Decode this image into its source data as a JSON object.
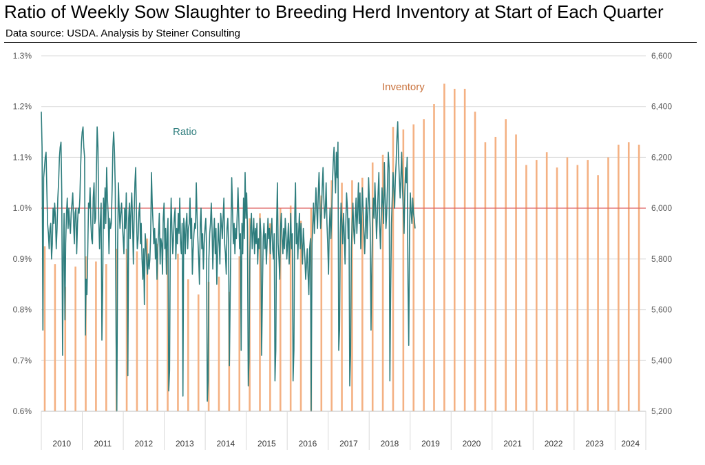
{
  "title": "Ratio of Weekly Sow Slaughter to Breeding Herd Inventory at Start of Each Quarter",
  "subtitle": "Data source: USDA.   Analysis by Steiner Consulting",
  "colors": {
    "ratio": "#2e7d7d",
    "inventory": "#f4b183",
    "reference": "#e06666",
    "inventory_label": "#c8703a",
    "grid": "#d9d9d9"
  },
  "chart_data": {
    "type": "line",
    "grid": true,
    "x_years": [
      "2010",
      "2011",
      "2012",
      "2013",
      "2014",
      "2015",
      "2016",
      "2017",
      "2018",
      "2019",
      "2020",
      "2021",
      "2022",
      "2023",
      "2024"
    ],
    "left_axis": {
      "ticks": [
        "1.3%",
        "1.2%",
        "1.1%",
        "1.0%",
        "0.9%",
        "0.8%",
        "0.7%",
        "0.6%"
      ],
      "ylim": [
        0.6,
        1.3
      ],
      "unit": "%"
    },
    "right_axis": {
      "ticks": [
        "6,600",
        "6,400",
        "6,200",
        "6,000",
        "5,800",
        "5,600",
        "5,400",
        "5,200"
      ],
      "ylim": [
        5200,
        6600
      ]
    },
    "reference_line": 1.0,
    "annotations": {
      "ratio": "Ratio",
      "inventory": "Inventory"
    },
    "series": [
      {
        "name": "Inventory",
        "type": "bar",
        "axis": "right",
        "x": [
          2010.0,
          2010.25,
          2010.5,
          2010.75,
          2011.0,
          2011.25,
          2011.5,
          2011.75,
          2012.0,
          2012.25,
          2012.5,
          2012.75,
          2013.0,
          2013.25,
          2013.5,
          2013.75,
          2014.0,
          2014.25,
          2014.5,
          2014.75,
          2015.0,
          2015.25,
          2015.5,
          2015.75,
          2016.0,
          2016.25,
          2016.5,
          2016.75,
          2017.0,
          2017.25,
          2017.5,
          2017.75,
          2018.0,
          2018.25,
          2018.5,
          2018.75,
          2019.0,
          2019.25,
          2019.5,
          2019.75,
          2020.0,
          2020.25,
          2020.5,
          2020.75,
          2021.0,
          2021.25,
          2021.5,
          2021.75,
          2022.0,
          2022.25,
          2022.5,
          2022.75,
          2023.0,
          2023.25,
          2023.5,
          2023.75,
          2024.0,
          2024.25,
          2024.5
        ],
        "values": [
          5850,
          5780,
          5690,
          5770,
          5810,
          5790,
          5780,
          5840,
          5840,
          5830,
          5880,
          5860,
          5840,
          5820,
          5720,
          5660,
          5710,
          5730,
          5670,
          5810,
          5960,
          5980,
          5940,
          6000,
          6010,
          5950,
          6000,
          6050,
          6110,
          6100,
          6110,
          6120,
          6180,
          6210,
          6320,
          6310,
          6330,
          6350,
          6410,
          6490,
          6470,
          6470,
          6380,
          6260,
          6280,
          6350,
          6290,
          6170,
          6190,
          6220,
          6160,
          6200,
          6170,
          6190,
          6130,
          6200,
          6250,
          6260,
          6250
        ]
      },
      {
        "name": "Ratio",
        "type": "line",
        "axis": "left",
        "x_start": 2010.0,
        "x_step": 0.0192,
        "values": [
          1.19,
          1.12,
          0.76,
          1.06,
          1.08,
          1.1,
          1.11,
          1.04,
          0.97,
          0.95,
          0.92,
          0.96,
          0.97,
          0.9,
          0.93,
          1.0,
          0.97,
          1.01,
          0.98,
          0.92,
          0.96,
          1.02,
          1.05,
          1.1,
          1.12,
          1.13,
          1.03,
          0.71,
          0.9,
          0.99,
          0.78,
          0.93,
          0.99,
          1.02,
          0.96,
          1.0,
          0.97,
          0.95,
          0.99,
          1.01,
          1.03,
          0.97,
          0.93,
          0.99,
          1.0,
          0.91,
          0.97,
          1.0,
          0.99,
          1.02,
          1.08,
          1.13,
          1.15,
          1.16,
          1.12,
          1.1,
          0.75,
          0.86,
          0.83,
          0.91,
          1.01,
          1.0,
          1.04,
          0.97,
          0.94,
          0.93,
          1.02,
          1.05,
          0.97,
          0.98,
          1.07,
          1.16,
          1.12,
          0.98,
          0.92,
          0.97,
          1.01,
          0.74,
          0.84,
          1.02,
          0.96,
          1.04,
          0.97,
          1.08,
          1.02,
          0.99,
          0.91,
          0.98,
          0.96,
          0.97,
          1.04,
          1.12,
          1.15,
          1.11,
          1.04,
          0.75,
          0.6,
          0.93,
          1.05,
          1.0,
          0.96,
          0.99,
          1.01,
          0.97,
          0.94,
          0.91,
          1.0,
          0.96,
          1.03,
          0.95,
          0.67,
          0.98,
          1.01,
          0.94,
          1.0,
          1.03,
          0.97,
          0.89,
          0.99,
          1.05,
          1.08,
          0.98,
          0.92,
          0.94,
          0.99,
          1.01,
          0.93,
          0.97,
          0.9,
          0.86,
          0.92,
          0.81,
          0.95,
          0.93,
          0.89,
          0.87,
          0.91,
          0.88,
          0.9,
          0.95,
          1.07,
          1.01,
          0.97,
          0.93,
          0.96,
          0.9,
          0.94,
          0.86,
          0.92,
          0.95,
          0.99,
          0.89,
          0.94,
          0.93,
          0.87,
          0.98,
          1.01,
          0.92,
          0.96,
          0.87,
          0.95,
          0.98,
          0.64,
          0.68,
          0.94,
          1.02,
          0.96,
          0.91,
          0.94,
          0.98,
          1.0,
          0.9,
          0.96,
          0.93,
          0.99,
          0.95,
          1.02,
          0.93,
          0.91,
          0.97,
          0.63,
          0.98,
          0.96,
          0.91,
          0.97,
          0.99,
          0.92,
          0.96,
          0.97,
          1.02,
          0.94,
          0.98,
          0.87,
          0.92,
          0.95,
          0.97,
          0.96,
          1.05,
          0.98,
          0.94,
          0.9,
          0.85,
          0.97,
          1.0,
          0.92,
          0.95,
          0.88,
          0.93,
          0.96,
          0.98,
          0.92,
          0.62,
          0.66,
          0.9,
          0.95,
          0.97,
          1.01,
          0.96,
          0.88,
          0.94,
          0.98,
          0.91,
          0.96,
          0.85,
          0.91,
          0.97,
          0.93,
          0.89,
          0.99,
          0.97,
          0.94,
          0.98,
          1.02,
          0.93,
          0.91,
          0.87,
          0.96,
          0.98,
          0.93,
          0.69,
          0.82,
          0.95,
          1.06,
          1.0,
          0.93,
          0.97,
          0.91,
          0.96,
          0.94,
          0.99,
          1.04,
          0.98,
          0.92,
          0.95,
          0.72,
          0.97,
          0.91,
          1.02,
          0.94,
          1.07,
          0.98,
          1.03,
          0.96,
          0.65,
          0.7,
          0.9,
          0.96,
          0.99,
          0.92,
          0.95,
          0.98,
          0.91,
          0.96,
          0.93,
          0.97,
          0.89,
          0.94,
          0.92,
          0.98,
          0.95,
          0.71,
          0.84,
          0.94,
          0.97,
          0.92,
          0.95,
          0.89,
          0.93,
          0.98,
          0.94,
          0.96,
          0.91,
          0.95,
          0.98,
          0.92,
          0.9,
          0.95,
          0.66,
          0.72,
          0.96,
          1.05,
          0.93,
          0.9,
          0.86,
          0.96,
          0.99,
          0.94,
          0.91,
          0.96,
          0.92,
          0.98,
          0.95,
          0.9,
          0.93,
          0.97,
          0.89,
          0.94,
          0.99,
          0.92,
          0.95,
          0.66,
          0.72,
          0.98,
          1.05,
          0.93,
          0.97,
          0.9,
          0.95,
          0.99,
          0.92,
          0.97,
          0.93,
          0.89,
          0.96,
          0.93,
          0.9,
          0.86,
          0.89,
          0.92,
          0.87,
          0.83,
          0.92,
          0.94,
          0.6,
          0.93,
          0.97,
          1.01,
          0.95,
          0.99,
          1.04,
          1.0,
          0.96,
          1.03,
          1.07,
          1.01,
          0.96,
          0.99,
          1.04,
          1.08,
          1.02,
          0.98,
          1.0,
          1.05,
          0.97,
          0.93,
          0.87,
          0.96,
          1.0,
          0.94,
          0.98,
          1.05,
          1.09,
          1.12,
          1.07,
          1.03,
          1.11,
          1.06,
          1.13,
          0.72,
          0.76,
          0.95,
          1.01,
          0.97,
          0.93,
          0.99,
          0.95,
          0.89,
          0.97,
          1.03,
          1.0,
          0.94,
          0.98,
          0.65,
          0.71,
          0.92,
          0.97,
          1.01,
          0.96,
          0.93,
          0.98,
          1.02,
          0.95,
          0.99,
          1.05,
          0.97,
          1.03,
          0.92,
          0.98,
          1.04,
          1.0,
          0.95,
          0.91,
          0.97,
          1.02,
          0.94,
          0.99,
          1.06,
          1.01,
          0.96,
          0.76,
          0.88,
          0.97,
          1.02,
          0.98,
          1.05,
          1.0,
          0.94,
          0.98,
          1.03,
          1.07,
          0.97,
          0.92,
          0.98,
          1.04,
          1.01,
          0.97,
          1.09,
          1.02,
          0.96,
          0.99,
          1.05,
          1.11,
          1.08,
          0.66,
          0.83,
          0.97,
          1.02,
          1.07,
          1.04,
          1.0,
          1.06,
          1.09,
          1.14,
          1.17,
          1.1,
          1.06,
          1.02,
          1.06,
          1.11,
          1.04,
          1.0,
          0.95,
          1.03,
          1.08,
          1.05,
          1.1,
          0.85,
          0.73,
          0.96,
          1.03,
          0.99,
          0.97,
          1.02,
          0.99,
          0.98,
          0.96
        ]
      }
    ]
  }
}
